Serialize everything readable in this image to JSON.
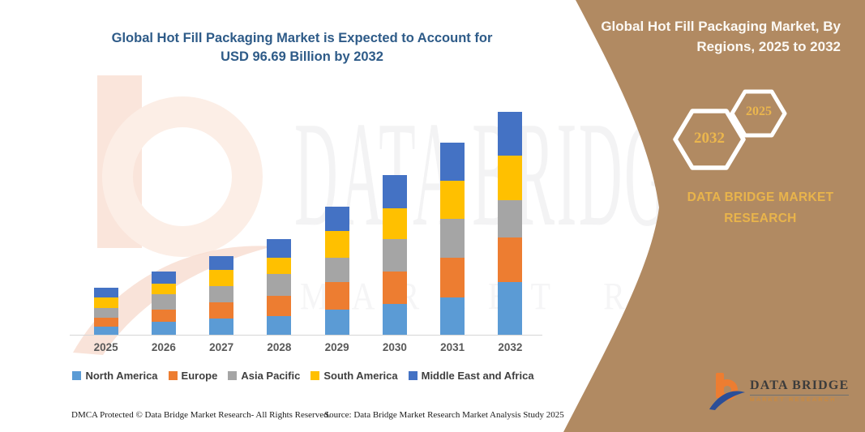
{
  "colors": {
    "panel": "#B18A62",
    "accent_gold": "#E9B44B",
    "title_blue": "#2E5B88",
    "axis_label_gray": "#595959",
    "baseline_gray": "#D6D6D6"
  },
  "chart_title": {
    "line1": "Global Hot Fill Packaging Market is Expected to Account for",
    "line2": "USD 96.69 Billion by 2032"
  },
  "watermark": {
    "big_text": "DATA BRIDGE",
    "sub_text": "MARKET RESEARCH"
  },
  "panel": {
    "title_line1": "Global Hot Fill Packaging Market, By",
    "title_line2": "Regions, 2025 to 2032",
    "hexagon_back_label": "2032",
    "hexagon_front_label": "2025",
    "brand_line1": "DATA BRIDGE MARKET",
    "brand_line2": "RESEARCH"
  },
  "logo": {
    "title": "DATA BRIDGE",
    "tagline": "MARKET RESEARCH"
  },
  "footer": {
    "left": "DMCA Protected © Data Bridge Market Research-  All Rights Reserved.",
    "right": "Source: Data Bridge Market Research  Market Analysis Study 2025"
  },
  "chart_data": {
    "type": "bar",
    "stacked": true,
    "title": "Global Hot Fill Packaging Market is Expected to Account for USD 96.69 Billion by 2032",
    "unit": "USD Billion (estimated from bar heights)",
    "xlabel": "",
    "ylabel": "",
    "y_axis_visible": false,
    "grid": false,
    "legend_position": "bottom",
    "categories": [
      "2025",
      "2026",
      "2027",
      "2028",
      "2029",
      "2030",
      "2031",
      "2032"
    ],
    "series": [
      {
        "name": "North America",
        "color": "#5B9BD5",
        "values": [
          3.5,
          5.6,
          7.0,
          8.1,
          10.9,
          13.4,
          16.2,
          22.9
        ]
      },
      {
        "name": "Europe",
        "color": "#ED7D31",
        "values": [
          3.9,
          5.3,
          7.0,
          8.8,
          12.0,
          14.1,
          17.2,
          19.3
        ]
      },
      {
        "name": "Asia Pacific",
        "color": "#A5A5A5",
        "values": [
          4.2,
          6.6,
          7.0,
          9.5,
          10.5,
          14.1,
          16.9,
          16.2
        ]
      },
      {
        "name": "South America",
        "color": "#FFC000",
        "values": [
          4.6,
          4.6,
          7.0,
          7.0,
          11.6,
          13.4,
          16.5,
          19.3
        ]
      },
      {
        "name": "Middle East and Africa",
        "color": "#4472C4",
        "values": [
          4.2,
          5.3,
          6.3,
          8.1,
          10.5,
          14.4,
          16.5,
          19.0
        ]
      }
    ],
    "totals_estimated": [
      20.4,
      27.4,
      34.3,
      41.5,
      55.5,
      69.4,
      83.3,
      96.7
    ],
    "highlight_value": "USD 96.69 Billion by 2032"
  }
}
